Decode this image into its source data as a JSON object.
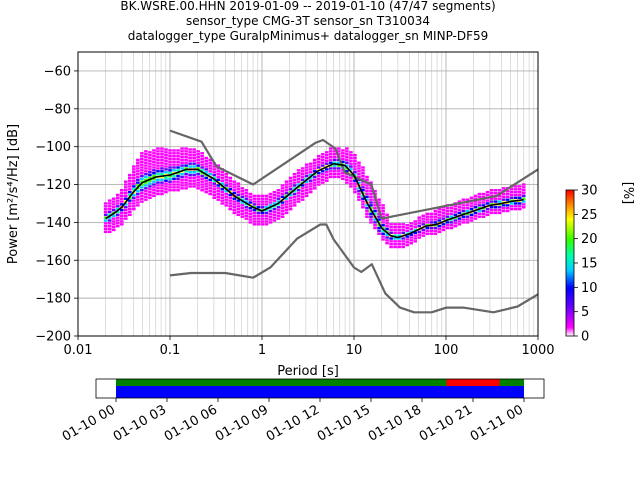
{
  "chart_data": {
    "type": "heatmap",
    "title_lines": [
      "BK.WSRE.00.HHN   2019-01-09 -- 2019-01-10  (47/47 segments)",
      "sensor_type CMG-3T sensor_sn T310034",
      "datalogger_type GuralpMinimus+ datalogger_sn MINP-DF59"
    ],
    "xlabel": "Period [s]",
    "ylabel": "Power [m²/s⁴/Hz] [dB]",
    "xscale": "log",
    "xlim": [
      0.01,
      1000
    ],
    "ylim": [
      -200,
      -50
    ],
    "xticks": [
      {
        "value": 0.01,
        "label": "0.01"
      },
      {
        "value": 0.1,
        "label": "0.1"
      },
      {
        "value": 1,
        "label": "1"
      },
      {
        "value": 10,
        "label": "10"
      },
      {
        "value": 100,
        "label": "100"
      },
      {
        "value": 1000,
        "label": "1000"
      }
    ],
    "yticks": [
      -60,
      -80,
      -100,
      -120,
      -140,
      -160,
      -180,
      -200
    ],
    "grid": true,
    "series": [
      {
        "role": "high-noise-model",
        "color": "#666666",
        "x": [
          0.1,
          0.22,
          0.32,
          0.8,
          3.8,
          4.6,
          6.3,
          7.9,
          15.4,
          20,
          354.8,
          1000
        ],
        "y": [
          -91.5,
          -97.4,
          -110.5,
          -120,
          -98,
          -96.5,
          -101,
          -113.5,
          -120,
          -138,
          -126,
          -112
        ]
      },
      {
        "role": "low-noise-model",
        "color": "#666666",
        "x": [
          0.1,
          0.17,
          0.4,
          0.8,
          1.24,
          2.4,
          4.3,
          5,
          6,
          10,
          12,
          15.6,
          21.9,
          31.6,
          45,
          70,
          101,
          154,
          328,
          600,
          1000
        ],
        "y": [
          -168,
          -166.7,
          -166.7,
          -169.2,
          -163.7,
          -148.6,
          -141.1,
          -141.1,
          -149,
          -163.8,
          -166.2,
          -162.1,
          -177.5,
          -185,
          -187.5,
          -187.5,
          -185,
          -185,
          -187.5,
          -184.4,
          -178
        ]
      },
      {
        "role": "mode",
        "color": "#000000",
        "x": [
          0.02,
          0.025,
          0.03,
          0.04,
          0.05,
          0.07,
          0.1,
          0.15,
          0.2,
          0.3,
          0.5,
          0.8,
          1.0,
          1.5,
          2.5,
          4,
          6,
          8,
          10,
          14,
          20,
          25,
          30,
          40,
          60,
          80,
          100,
          150,
          200,
          300,
          400,
          500,
          700
        ],
        "y": [
          -138,
          -135,
          -132,
          -124,
          -119,
          -116,
          -115,
          -112,
          -112,
          -117,
          -126,
          -132,
          -134,
          -130,
          -121,
          -113,
          -109,
          -110,
          -115,
          -130,
          -143,
          -147,
          -148,
          -146,
          -142,
          -141,
          -139,
          -136,
          -134,
          -131,
          -130,
          -129,
          -128
        ]
      }
    ],
    "heatmap_band": {
      "x": [
        0.02,
        0.025,
        0.03,
        0.04,
        0.05,
        0.07,
        0.1,
        0.15,
        0.2,
        0.3,
        0.5,
        0.8,
        1.0,
        1.5,
        2.5,
        4,
        6,
        8,
        10,
        14,
        20,
        25,
        30,
        40,
        60,
        80,
        100,
        150,
        200,
        300,
        400,
        500,
        700
      ],
      "y_low": [
        -145,
        -143,
        -140,
        -133,
        -128,
        -125,
        -123,
        -121,
        -121,
        -126,
        -134,
        -140,
        -141,
        -138,
        -129,
        -120,
        -115,
        -117,
        -122,
        -137,
        -148,
        -152,
        -153,
        -151,
        -146,
        -145,
        -143,
        -140,
        -138,
        -135,
        -134,
        -133,
        -132
      ],
      "y_high": [
        -130,
        -127,
        -123,
        -111,
        -103,
        -102,
        -101,
        -101,
        -102,
        -108,
        -118,
        -125,
        -127,
        -123,
        -113,
        -106,
        -101,
        -101,
        -104,
        -116,
        -130,
        -140,
        -142,
        -141,
        -136,
        -134,
        -132,
        -129,
        -126,
        -124,
        -122,
        -121,
        -120
      ]
    },
    "colorbar": {
      "label": "[%]",
      "min": 0,
      "max": 30,
      "ticks": [
        0,
        5,
        10,
        15,
        20,
        25,
        30
      ],
      "colormap": "pqlx"
    },
    "timeline": {
      "tick_labels": [
        "01-10 00",
        "01-10 03",
        "01-10 06",
        "01-10 09",
        "01-10 12",
        "01-10 15",
        "01-10 18",
        "01-10 21",
        "01-11 00"
      ],
      "data_fraction": [
        0.0,
        1.0
      ],
      "gap_fraction": [
        0.81,
        0.94
      ],
      "colors": {
        "data": "#0000ff",
        "coverage": "#008000",
        "gap": "#ff0000"
      }
    }
  }
}
